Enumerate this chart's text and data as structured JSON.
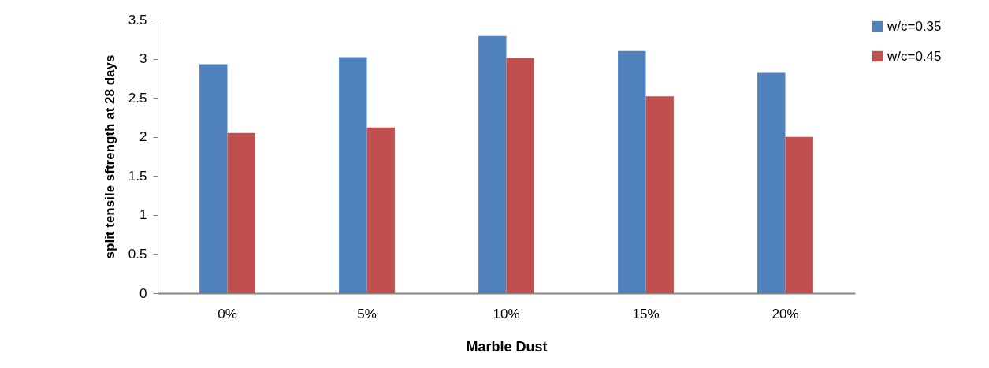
{
  "chart_data": {
    "type": "bar",
    "xlabel": "Marble Dust",
    "ylabel": "split tensile sftrength at 28 days",
    "categories": [
      "0%",
      "5%",
      "10%",
      "15%",
      "20%"
    ],
    "series": [
      {
        "name": "w/c=0.35",
        "color": "#4f81bd",
        "values": [
          2.93,
          3.02,
          3.29,
          3.1,
          2.82
        ]
      },
      {
        "name": "w/c=0.45",
        "color": "#c0504d",
        "values": [
          2.05,
          2.12,
          3.01,
          2.52,
          2.0
        ]
      }
    ],
    "ylim": [
      0,
      3.5
    ],
    "yticks": [
      0,
      0.5,
      1,
      1.5,
      2,
      2.5,
      3,
      3.5
    ],
    "grid": false,
    "legend": "right"
  }
}
